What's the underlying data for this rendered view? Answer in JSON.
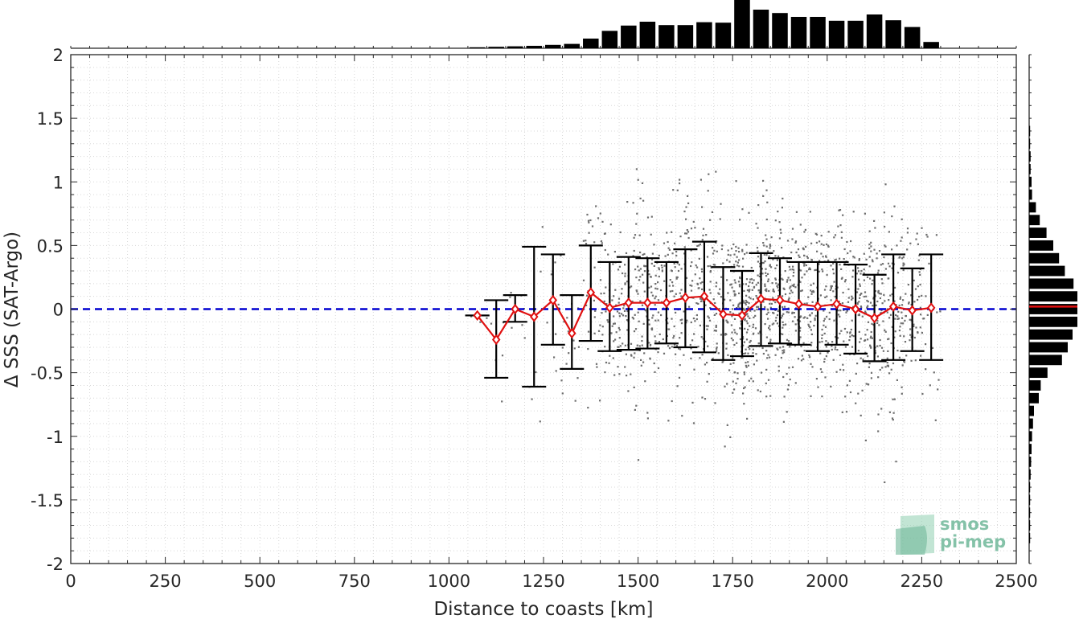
{
  "chart_data": {
    "type": "scatter",
    "title": "",
    "xlabel": "Distance to coasts [km]",
    "ylabel": "Δ SSS (SAT-Argo)",
    "xlim": [
      0,
      2500
    ],
    "ylim": [
      -2,
      2
    ],
    "xticks": [
      "0",
      "250",
      "500",
      "750",
      "1000",
      "1250",
      "1500",
      "1750",
      "2000",
      "2250",
      "2500"
    ],
    "yticks": [
      "2",
      "1.5",
      "1",
      "0.5",
      "0",
      "-0.5",
      "-1",
      "-1.5",
      "-2"
    ],
    "grid": "dotted minor grid",
    "reference_line": {
      "y": 0,
      "color": "#0000d0",
      "style": "dashed"
    },
    "scatter_points": {
      "color": "#6e6e6e",
      "description": "individual SAT-Argo differences"
    },
    "binned_stats": {
      "color": "#e01010",
      "x": [
        1075,
        1125,
        1175,
        1225,
        1275,
        1325,
        1375,
        1425,
        1475,
        1525,
        1575,
        1625,
        1675,
        1725,
        1775,
        1825,
        1875,
        1925,
        1975,
        2025,
        2075,
        2125,
        2175,
        2225,
        2275
      ],
      "mean": [
        -0.05,
        -0.24,
        0.0,
        -0.06,
        0.07,
        -0.19,
        0.13,
        0.01,
        0.05,
        0.05,
        0.05,
        0.09,
        0.1,
        -0.04,
        -0.05,
        0.08,
        0.07,
        0.04,
        0.02,
        0.04,
        0.0,
        -0.07,
        0.02,
        -0.01,
        0.01
      ],
      "upper": [
        -0.05,
        0.07,
        0.11,
        0.49,
        0.43,
        0.11,
        0.5,
        0.37,
        0.41,
        0.4,
        0.37,
        0.47,
        0.53,
        0.33,
        0.3,
        0.44,
        0.4,
        0.37,
        0.37,
        0.37,
        0.35,
        0.27,
        0.43,
        0.32,
        0.43
      ],
      "lower": [
        -0.05,
        -0.54,
        -0.1,
        -0.61,
        -0.28,
        -0.47,
        -0.25,
        -0.33,
        -0.32,
        -0.31,
        -0.27,
        -0.3,
        -0.34,
        -0.4,
        -0.37,
        -0.29,
        -0.27,
        -0.28,
        -0.33,
        -0.28,
        -0.35,
        -0.41,
        -0.4,
        -0.33,
        -0.4
      ]
    },
    "top_histogram": {
      "x": [
        1075,
        1125,
        1175,
        1225,
        1275,
        1325,
        1375,
        1425,
        1475,
        1525,
        1575,
        1625,
        1675,
        1725,
        1775,
        1825,
        1875,
        1925,
        1975,
        2025,
        2075,
        2125,
        2175,
        2225,
        2275
      ],
      "values": [
        0.02,
        0.03,
        0.04,
        0.05,
        0.07,
        0.09,
        0.2,
        0.36,
        0.47,
        0.55,
        0.48,
        0.48,
        0.54,
        0.53,
        1.0,
        0.8,
        0.73,
        0.65,
        0.65,
        0.57,
        0.57,
        0.7,
        0.58,
        0.44,
        0.13
      ]
    },
    "right_histogram": {
      "y": [
        1.4,
        1.3,
        1.2,
        1.1,
        1.0,
        0.9,
        0.8,
        0.7,
        0.6,
        0.5,
        0.4,
        0.3,
        0.2,
        0.1,
        0.0,
        -0.1,
        -0.2,
        -0.3,
        -0.4,
        -0.5,
        -0.6,
        -0.7,
        -0.8,
        -0.9,
        -1.0,
        -1.1,
        -1.2,
        -1.3,
        -1.4,
        -1.5,
        -1.6,
        -1.7,
        -1.8
      ],
      "values": [
        0.02,
        0.02,
        0.03,
        0.03,
        0.05,
        0.06,
        0.14,
        0.22,
        0.36,
        0.5,
        0.62,
        0.74,
        0.92,
        1.0,
        1.0,
        1.0,
        0.9,
        0.8,
        0.68,
        0.38,
        0.24,
        0.2,
        0.1,
        0.08,
        0.06,
        0.05,
        0.04,
        0.03,
        0.02,
        0.02,
        0.02,
        0.02,
        0.02
      ]
    },
    "right_histogram_mean_line": {
      "y": 0.02,
      "color": "#e01010"
    }
  },
  "logo": {
    "line1": "smos",
    "line2": "pi-mep"
  }
}
